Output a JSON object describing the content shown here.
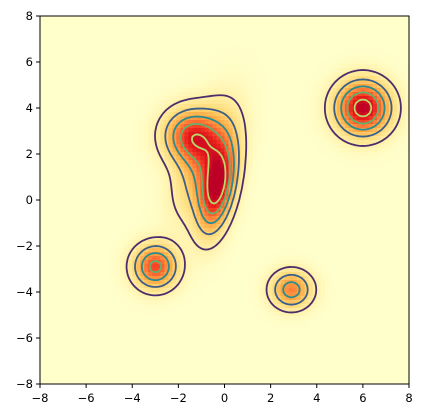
{
  "chart_data": {
    "type": "heatmap",
    "title": "",
    "xlabel": "",
    "ylabel": "",
    "xlim": [
      -8,
      8
    ],
    "ylim": [
      -8,
      8
    ],
    "x_ticks": [
      "−8",
      "−6",
      "−4",
      "−2",
      "0",
      "2",
      "4",
      "6",
      "8"
    ],
    "y_ticks": [
      "8",
      "6",
      "4",
      "2",
      "0",
      "−2",
      "−4",
      "−6",
      "−8"
    ],
    "x_tick_values": [
      -8,
      -6,
      -4,
      -2,
      0,
      2,
      4,
      6,
      8
    ],
    "y_tick_values": [
      8,
      6,
      4,
      2,
      0,
      -2,
      -4,
      -6,
      -8
    ],
    "colormap": [
      "#ffffcc",
      "#ffeda0",
      "#fed976",
      "#feb24c",
      "#fd8d3c",
      "#fc4e2a",
      "#e31a1c",
      "#bd0026"
    ],
    "contour_colors": [
      "#4b2e6d",
      "#3b5f8a",
      "#2a8c8c",
      "#62b36d",
      "#b8d96a"
    ],
    "grid": false,
    "sources": [
      {
        "x": 6.0,
        "y": 4.0,
        "sx": 0.8,
        "sy": 0.8,
        "rho": 0.0,
        "amp": 1.0
      },
      {
        "x": -0.3,
        "y": 0.5,
        "sx": 0.55,
        "sy": 1.3,
        "rho": 0.4,
        "amp": 0.9
      },
      {
        "x": -1.5,
        "y": 2.8,
        "sx": 0.8,
        "sy": 0.8,
        "rho": 0.0,
        "amp": 0.7
      },
      {
        "x": -3.0,
        "y": -2.9,
        "sx": 0.65,
        "sy": 0.65,
        "rho": 0.0,
        "amp": 0.75
      },
      {
        "x": 2.9,
        "y": -3.9,
        "sx": 0.6,
        "sy": 0.55,
        "rho": 0.0,
        "amp": 0.6
      },
      {
        "x": -0.8,
        "y": 1.8,
        "sx": 0.9,
        "sy": 1.6,
        "rho": 0.5,
        "amp": 0.45
      }
    ],
    "contour_levels": [
      0.12,
      0.3,
      0.5,
      0.7,
      0.9
    ]
  }
}
